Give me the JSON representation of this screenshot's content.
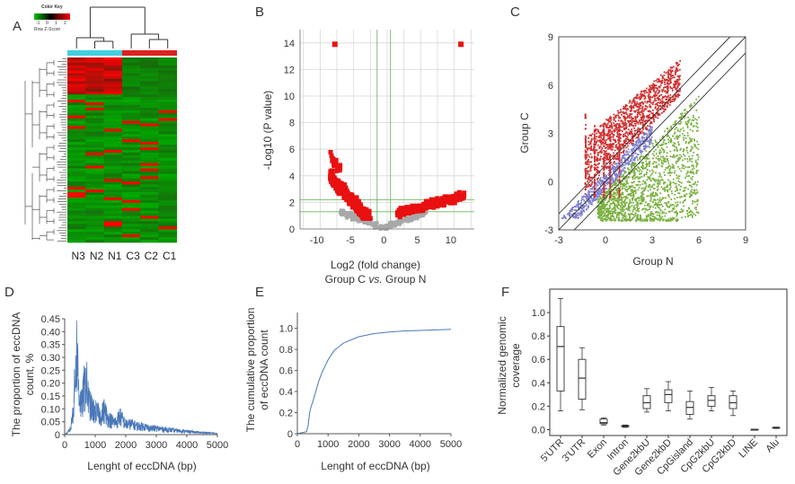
{
  "figure": {
    "panels": [
      "A",
      "B",
      "C",
      "D",
      "E",
      "F"
    ]
  },
  "chart_data": [
    {
      "panel": "A",
      "type": "heatmap",
      "title": "",
      "color_key": {
        "title": "Color Key",
        "sublabel": "Row Z-Score",
        "ticks": [
          "-1",
          "0",
          "1",
          "2"
        ],
        "low_color": "#00a000",
        "mid_color": "#000000",
        "high_color": "#ff0000"
      },
      "column_labels": [
        "N3",
        "N2",
        "N1",
        "C3",
        "C2",
        "C1"
      ],
      "group_colors": {
        "N": "#40d0e0",
        "C": "#e02020"
      }
    },
    {
      "panel": "B",
      "type": "scatter",
      "title": "Group C vs. Group N",
      "title_prefix": "Group C",
      "title_vs": "vs.",
      "title_suffix": "Group N",
      "xlabel": "Log2 (fold change)",
      "ylabel": "-Log10 (P value)",
      "xlim": [
        -12.5,
        13.5
      ],
      "ylim": [
        0,
        15
      ],
      "xticks": [
        -10,
        -5,
        0,
        5,
        10
      ],
      "yticks": [
        0,
        2,
        4,
        6,
        8,
        10,
        12,
        14
      ],
      "outliers": [
        {
          "x": -7.3,
          "y": 13.9
        },
        {
          "x": 11.5,
          "y": 13.9
        }
      ],
      "significant_color": "#e81010",
      "nonsignificant_color": "#a8a8a8"
    },
    {
      "panel": "C",
      "type": "scatter",
      "title": "",
      "xlabel": "Group N",
      "ylabel": "Group C",
      "xlim": [
        -3,
        9
      ],
      "ylim": [
        -3,
        9
      ],
      "xticks": [
        -3,
        0,
        3,
        6,
        9
      ],
      "yticks": [
        -3,
        0,
        3,
        6,
        9
      ],
      "series_colors": {
        "up": "#d03030",
        "unchanged": "#8080d0",
        "down": "#7ab040"
      }
    },
    {
      "panel": "D",
      "type": "line",
      "title": "",
      "xlabel": "Lenght of eccDNA (bp)",
      "ylabel": "The proportion of eccDNA count, %",
      "ylabel_lines": [
        "The proportion of eccDNA",
        "count, %"
      ],
      "xlim": [
        0,
        5000
      ],
      "ylim": [
        0,
        0.45
      ],
      "xticks": [
        0,
        1000,
        2000,
        3000,
        4000,
        5000
      ],
      "yticks": [
        0,
        0.05,
        0.1,
        0.15,
        0.2,
        0.25,
        0.3,
        0.35,
        0.4,
        0.45
      ],
      "ytick_labels": [
        "0",
        "0.05",
        "0.10",
        "0.15",
        "0.20",
        "0.25",
        "0.30",
        "0.35",
        "0.40",
        "0.45"
      ],
      "x": [
        0,
        100,
        200,
        300,
        350,
        400,
        450,
        500,
        550,
        600,
        650,
        700,
        750,
        800,
        900,
        1000,
        1100,
        1200,
        1300,
        1400,
        1500,
        1600,
        1700,
        1800,
        2000,
        2200,
        2400,
        2600,
        2800,
        3000,
        3300,
        3600,
        4000,
        4400,
        4800,
        5000
      ],
      "values": [
        0,
        0.01,
        0.03,
        0.15,
        0.3,
        0.41,
        0.25,
        0.17,
        0.14,
        0.18,
        0.23,
        0.26,
        0.2,
        0.15,
        0.12,
        0.11,
        0.1,
        0.09,
        0.12,
        0.08,
        0.07,
        0.06,
        0.06,
        0.09,
        0.05,
        0.05,
        0.04,
        0.04,
        0.03,
        0.03,
        0.025,
        0.02,
        0.015,
        0.01,
        0.008,
        0.005
      ],
      "color": "#4a78b8"
    },
    {
      "panel": "E",
      "type": "line",
      "title": "",
      "xlabel": "Lenght of eccDNA (bp)",
      "ylabel": "The cumulative proportion of eccDNA count",
      "ylabel_lines": [
        "The cumulative proportion",
        "of eccDNA count"
      ],
      "xlim": [
        0,
        5000
      ],
      "ylim": [
        0,
        1.15
      ],
      "xticks": [
        0,
        1000,
        2000,
        3000,
        4000,
        5000
      ],
      "yticks": [
        0,
        0.2,
        0.4,
        0.6,
        0.8,
        1.0
      ],
      "ytick_labels": [
        "0",
        "0.2",
        "0.4",
        "0.6",
        "0.8",
        "1.0"
      ],
      "x": [
        0,
        300,
        350,
        400,
        450,
        500,
        600,
        700,
        800,
        1000,
        1200,
        1500,
        2000,
        2500,
        3000,
        3500,
        4000,
        4500,
        5000
      ],
      "values": [
        0,
        0.02,
        0.08,
        0.2,
        0.26,
        0.3,
        0.4,
        0.5,
        0.58,
        0.7,
        0.79,
        0.86,
        0.92,
        0.95,
        0.965,
        0.975,
        0.98,
        0.985,
        0.99
      ],
      "color": "#4a78b8"
    },
    {
      "panel": "F",
      "type": "box",
      "title": "",
      "xlabel": "",
      "ylabel": "Normalized genomic coverage",
      "ylabel_lines": [
        "Normalized genomic",
        "coverage"
      ],
      "ylim": [
        -0.05,
        1.2
      ],
      "yticks": [
        0,
        0.2,
        0.4,
        0.6,
        0.8,
        1.0
      ],
      "ytick_labels": [
        "0.0",
        "0.2",
        "0.4",
        "0.6",
        "0.8",
        "1.0"
      ],
      "categories": [
        "5'UTR",
        "3'UTR",
        "Exon",
        "Intron",
        "Gene2kbU",
        "Gene2kbD",
        "CpGisland",
        "CpG2kbU",
        "CpG2kbD",
        "LINE",
        "Alu"
      ],
      "boxes": [
        {
          "min": 0.16,
          "q1": 0.33,
          "median": 0.71,
          "q3": 0.88,
          "max": 1.12
        },
        {
          "min": 0.17,
          "q1": 0.26,
          "median": 0.44,
          "q3": 0.6,
          "max": 0.7
        },
        {
          "min": 0.04,
          "q1": 0.05,
          "median": 0.06,
          "q3": 0.09,
          "max": 0.1
        },
        {
          "min": 0.02,
          "q1": 0.025,
          "median": 0.03,
          "q3": 0.035,
          "max": 0.04
        },
        {
          "min": 0.15,
          "q1": 0.18,
          "median": 0.23,
          "q3": 0.29,
          "max": 0.35
        },
        {
          "min": 0.16,
          "q1": 0.23,
          "median": 0.3,
          "q3": 0.34,
          "max": 0.41
        },
        {
          "min": 0.09,
          "q1": 0.13,
          "median": 0.19,
          "q3": 0.24,
          "max": 0.33
        },
        {
          "min": 0.16,
          "q1": 0.2,
          "median": 0.25,
          "q3": 0.29,
          "max": 0.36
        },
        {
          "min": 0.12,
          "q1": 0.18,
          "median": 0.23,
          "q3": 0.29,
          "max": 0.33
        },
        {
          "min": 0.0,
          "q1": 0.001,
          "median": 0.002,
          "q3": 0.003,
          "max": 0.004
        },
        {
          "min": 0.01,
          "q1": 0.013,
          "median": 0.016,
          "q3": 0.02,
          "max": 0.022
        }
      ]
    }
  ]
}
